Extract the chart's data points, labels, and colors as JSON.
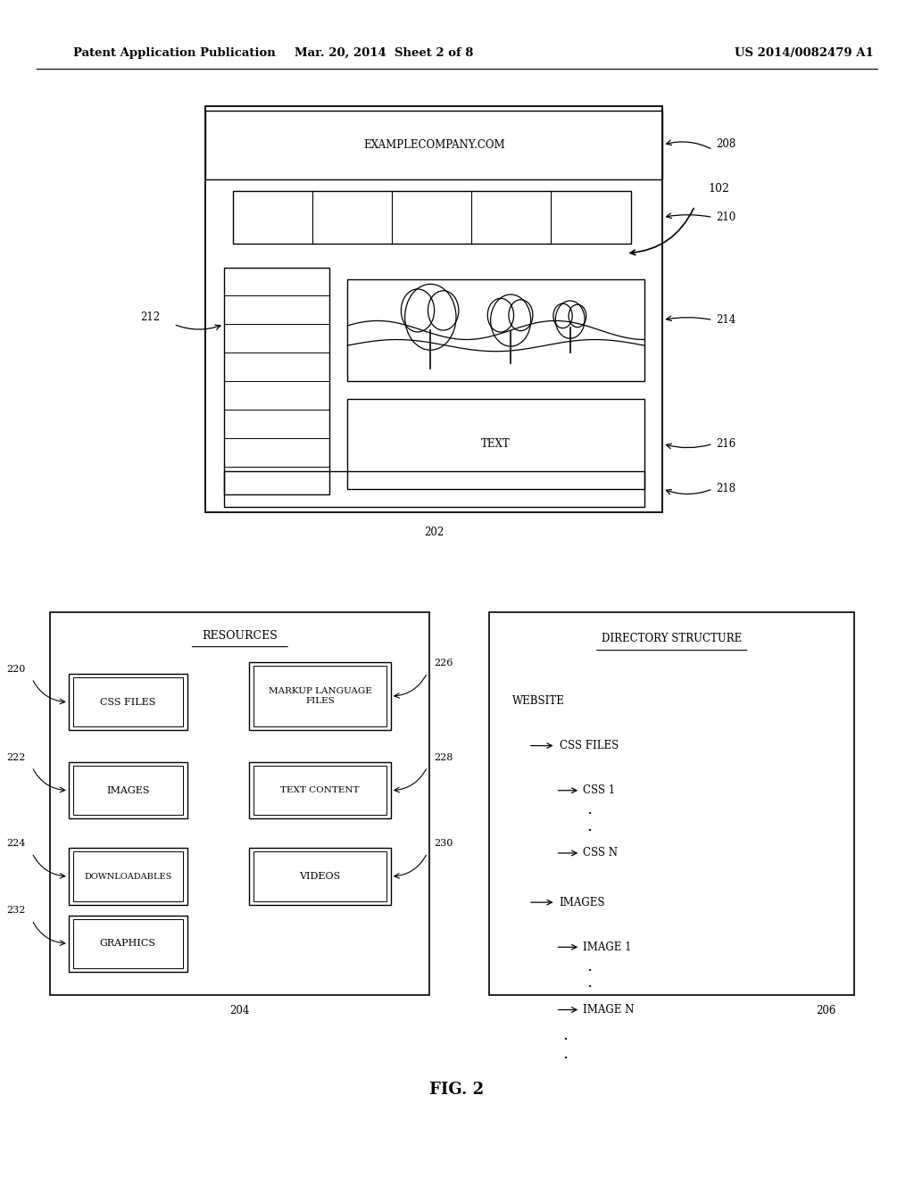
{
  "bg_color": "#ffffff",
  "header_left": "Patent Application Publication",
  "header_mid": "Mar. 20, 2014  Sheet 2 of 8",
  "header_right": "US 2014/0082479 A1",
  "fig_label": "FIG. 2",
  "ref102": "102"
}
